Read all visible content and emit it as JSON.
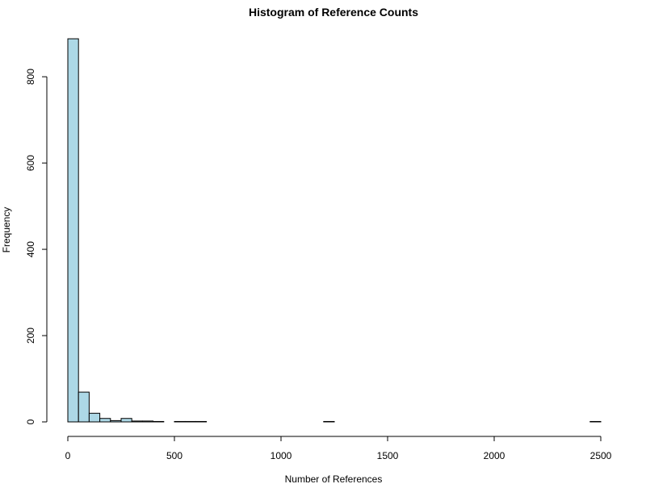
{
  "chart_data": {
    "type": "bar",
    "title": "Histogram of Reference Counts",
    "xlabel": "Number of References",
    "ylabel": "Frequency",
    "bin_width": 50,
    "xlim": [
      0,
      2500
    ],
    "ylim": [
      0,
      890
    ],
    "x_ticks": [
      0,
      500,
      1000,
      1500,
      2000,
      2500
    ],
    "y_ticks": [
      0,
      200,
      400,
      600,
      800
    ],
    "bins": [
      {
        "start": 0,
        "end": 50,
        "value": 888
      },
      {
        "start": 50,
        "end": 100,
        "value": 69
      },
      {
        "start": 100,
        "end": 150,
        "value": 20
      },
      {
        "start": 150,
        "end": 200,
        "value": 8
      },
      {
        "start": 200,
        "end": 250,
        "value": 3
      },
      {
        "start": 250,
        "end": 300,
        "value": 8
      },
      {
        "start": 300,
        "end": 350,
        "value": 2
      },
      {
        "start": 350,
        "end": 400,
        "value": 2
      },
      {
        "start": 400,
        "end": 450,
        "value": 1
      },
      {
        "start": 500,
        "end": 550,
        "value": 1
      },
      {
        "start": 550,
        "end": 600,
        "value": 1
      },
      {
        "start": 600,
        "end": 650,
        "value": 1
      },
      {
        "start": 1200,
        "end": 1250,
        "value": 1
      },
      {
        "start": 2450,
        "end": 2500,
        "value": 1
      }
    ],
    "bar_color": "#add8e6",
    "bar_border_color": "#000000",
    "grid": false,
    "legend": "none"
  }
}
